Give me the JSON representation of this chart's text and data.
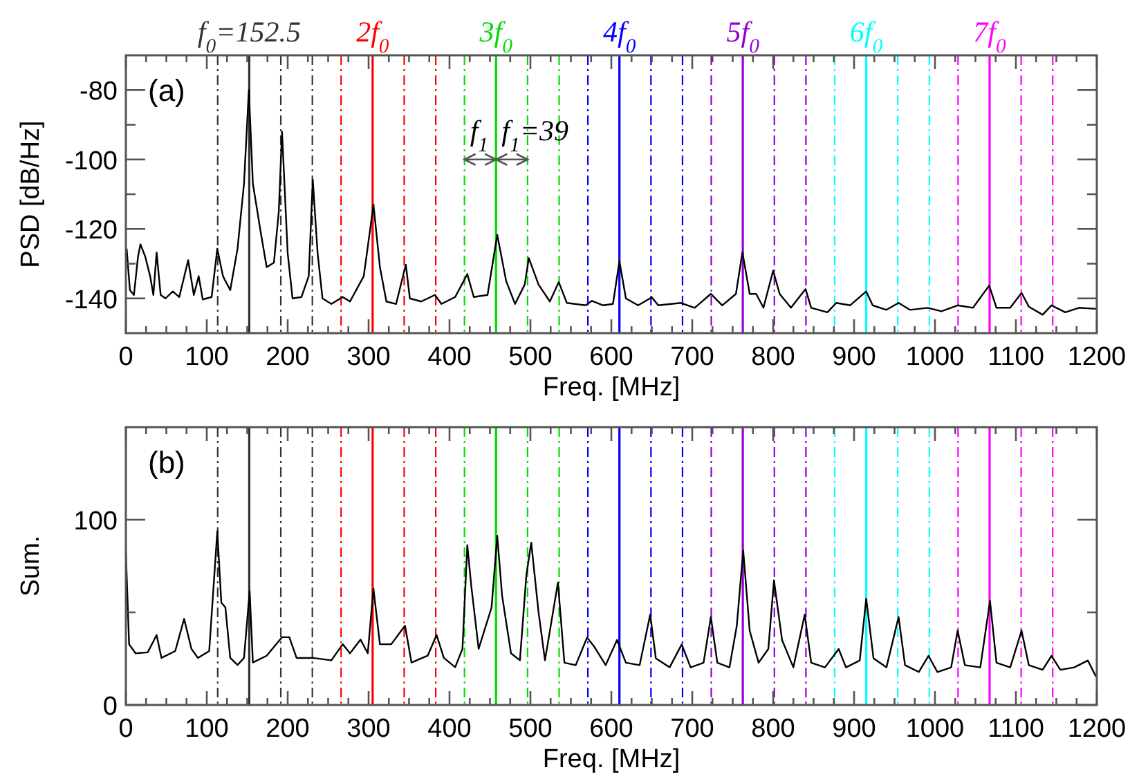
{
  "chart_data": [
    {
      "type": "line",
      "xlabel": "Freq. [MHz]",
      "ylabel": "PSD [dB/Hz]",
      "xlim": [
        0,
        1200
      ],
      "xticks": [
        0,
        {
          "value": 25,
          "label": null
        },
        {
          "value": 50,
          "label": null
        },
        {
          "value": 75,
          "label": null
        },
        100,
        {
          "value": 125,
          "label": null
        },
        {
          "value": 150,
          "label": null
        },
        {
          "value": 175,
          "label": null
        },
        200,
        {
          "value": 225,
          "label": null
        },
        {
          "value": 250,
          "label": null
        },
        {
          "value": 275,
          "label": null
        },
        300,
        {
          "value": 325,
          "label": null
        },
        {
          "value": 350,
          "label": null
        },
        {
          "value": 375,
          "label": null
        },
        400,
        {
          "value": 425,
          "label": null
        },
        {
          "value": 450,
          "label": null
        },
        {
          "value": 475,
          "label": null
        },
        500,
        {
          "value": 525,
          "label": null
        },
        {
          "value": 550,
          "label": null
        },
        {
          "value": 575,
          "label": null
        },
        600,
        {
          "value": 625,
          "label": null
        },
        {
          "value": 650,
          "label": null
        },
        {
          "value": 675,
          "label": null
        },
        700,
        {
          "value": 725,
          "label": null
        },
        {
          "value": 750,
          "label": null
        },
        {
          "value": 775,
          "label": null
        },
        800,
        {
          "value": 825,
          "label": null
        },
        {
          "value": 850,
          "label": null
        },
        {
          "value": 875,
          "label": null
        },
        900,
        {
          "value": 925,
          "label": null
        },
        {
          "value": 950,
          "label": null
        },
        {
          "value": 975,
          "label": null
        },
        1000,
        {
          "value": 1025,
          "label": null
        },
        {
          "value": 1050,
          "label": null
        },
        {
          "value": 1075,
          "label": null
        },
        1100,
        {
          "value": 1125,
          "label": null
        },
        {
          "value": 1150,
          "label": null
        },
        {
          "value": 1175,
          "label": null
        },
        1200
      ],
      "ylim": [
        -150,
        -70
      ],
      "yticks": [
        -140,
        {
          "value": -130,
          "label": null
        },
        -120,
        {
          "value": -110,
          "label": null
        },
        -100,
        {
          "value": -90,
          "label": null
        },
        -80
      ],
      "series": [
        {
          "color": "#000000",
          "x": [
            1,
            5,
            10,
            15,
            18,
            24,
            30,
            34,
            38,
            43,
            49,
            58,
            66,
            77,
            84,
            90,
            95,
            106,
            113,
            120,
            129,
            138,
            146,
            152,
            157,
            166,
            174,
            183,
            189,
            193,
            200,
            206,
            217,
            226,
            231,
            237,
            243,
            254,
            268,
            277,
            294,
            302,
            306,
            314,
            322,
            334,
            346,
            351,
            365,
            382,
            390,
            407,
            422,
            430,
            447,
            459,
            470,
            481,
            493,
            498,
            510,
            524,
            535,
            545,
            568,
            576,
            590,
            602,
            610,
            618,
            633,
            650,
            658,
            686,
            703,
            723,
            737,
            754,
            762,
            771,
            779,
            788,
            800,
            808,
            822,
            840,
            847,
            867,
            878,
            895,
            915,
            923,
            940,
            955,
            969,
            991,
            1008,
            1028,
            1047,
            1067,
            1076,
            1093,
            1107,
            1116,
            1133,
            1144,
            1161,
            1178,
            1199
          ],
          "values": [
            -125.7,
            -137.6,
            -139,
            -128,
            -124.4,
            -128,
            -133.6,
            -139,
            -126.8,
            -139,
            -140,
            -138,
            -139.6,
            -129,
            -139,
            -133.6,
            -140.3,
            -139.6,
            -125.7,
            -133.6,
            -137.6,
            -125.7,
            -107,
            -80,
            -107,
            -120,
            -131,
            -129.7,
            -115,
            -92,
            -127,
            -140,
            -139.6,
            -133.6,
            -105.8,
            -127,
            -140,
            -141.6,
            -139.6,
            -140.9,
            -133.6,
            -120,
            -113,
            -131,
            -140.9,
            -141.6,
            -130.3,
            -140,
            -140.9,
            -139,
            -141.6,
            -139.6,
            -133,
            -139.6,
            -139,
            -121.7,
            -135,
            -141.6,
            -136,
            -128.4,
            -136,
            -140.9,
            -135.3,
            -141.3,
            -142,
            -140.7,
            -142,
            -141.6,
            -129.3,
            -140,
            -142,
            -139.7,
            -142,
            -141.3,
            -142.7,
            -138.7,
            -142,
            -138.7,
            -126.7,
            -138.7,
            -138.7,
            -142.7,
            -132,
            -138.7,
            -142.7,
            -137.3,
            -142.7,
            -144,
            -141.3,
            -142,
            -138,
            -142,
            -143.3,
            -141.3,
            -143.3,
            -142.7,
            -143.7,
            -142,
            -142.7,
            -136.3,
            -142.7,
            -142.7,
            -138.4,
            -142.4,
            -144.7,
            -142,
            -144,
            -142.7,
            -143
          ]
        }
      ],
      "ref_lines": [
        {
          "axis": "x",
          "value": 152.5,
          "label": "f$_{0}$=152.5",
          "color": "#333333",
          "line_style": "solid"
        },
        {
          "axis": "x",
          "value": 113.5,
          "label": null,
          "color": "#333333",
          "line_style": "dashed"
        },
        {
          "axis": "x",
          "value": 191.5,
          "label": null,
          "color": "#333333",
          "line_style": "dashed"
        },
        {
          "axis": "x",
          "value": 230.5,
          "label": null,
          "color": "#333333",
          "line_style": "dashed"
        },
        {
          "axis": "x",
          "value": 305,
          "label": "2f$_{0}$",
          "color": "#ff0000",
          "line_style": "solid"
        },
        {
          "axis": "x",
          "value": 266,
          "label": null,
          "color": "#ff0000",
          "line_style": "dashed"
        },
        {
          "axis": "x",
          "value": 344,
          "label": null,
          "color": "#ff0000",
          "line_style": "dashed"
        },
        {
          "axis": "x",
          "value": 383,
          "label": null,
          "color": "#ff0000",
          "line_style": "dashed"
        },
        {
          "axis": "x",
          "value": 457.5,
          "label": "3f$_{0}$",
          "color": "#00dd00",
          "line_style": "solid"
        },
        {
          "axis": "x",
          "value": 418.5,
          "label": null,
          "color": "#00dd00",
          "line_style": "dashed"
        },
        {
          "axis": "x",
          "value": 496.5,
          "label": null,
          "color": "#00dd00",
          "line_style": "dashed"
        },
        {
          "axis": "x",
          "value": 535.5,
          "label": null,
          "color": "#00dd00",
          "line_style": "dashed"
        },
        {
          "axis": "x",
          "value": 610,
          "label": "4f$_{0}$",
          "color": "#0000ff",
          "line_style": "solid"
        },
        {
          "axis": "x",
          "value": 571,
          "label": null,
          "color": "#0000ff",
          "line_style": "dashed"
        },
        {
          "axis": "x",
          "value": 649,
          "label": null,
          "color": "#0000ff",
          "line_style": "dashed"
        },
        {
          "axis": "x",
          "value": 688,
          "label": null,
          "color": "#0000ff",
          "line_style": "dashed"
        },
        {
          "axis": "x",
          "value": 762.5,
          "label": "5f$_{0}$",
          "color": "#9400d3",
          "line_style": "solid"
        },
        {
          "axis": "x",
          "value": 723.5,
          "label": null,
          "color": "#9400d3",
          "line_style": "dashed"
        },
        {
          "axis": "x",
          "value": 801.5,
          "label": null,
          "color": "#9400d3",
          "line_style": "dashed"
        },
        {
          "axis": "x",
          "value": 840.5,
          "label": null,
          "color": "#9400d3",
          "line_style": "dashed"
        },
        {
          "axis": "x",
          "value": 915,
          "label": "6f$_{0}$",
          "color": "#00ffff",
          "line_style": "solid"
        },
        {
          "axis": "x",
          "value": 876,
          "label": null,
          "color": "#00ffff",
          "line_style": "dashed"
        },
        {
          "axis": "x",
          "value": 954,
          "label": null,
          "color": "#00ffff",
          "line_style": "dashed"
        },
        {
          "axis": "x",
          "value": 993,
          "label": null,
          "color": "#00ffff",
          "line_style": "dashed"
        },
        {
          "axis": "x",
          "value": 1067.5,
          "label": "7f$_{0}$",
          "color": "#ff00ff",
          "line_style": "solid"
        },
        {
          "axis": "x",
          "value": 1028.5,
          "label": null,
          "color": "#ff00ff",
          "line_style": "dashed"
        },
        {
          "axis": "x",
          "value": 1106.5,
          "label": null,
          "color": "#ff00ff",
          "line_style": "dashed"
        },
        {
          "axis": "x",
          "value": 1145.5,
          "label": null,
          "color": "#ff00ff",
          "line_style": "dashed"
        }
      ],
      "annotations": [
        "(a)",
        "f$_{1}$",
        "f$_{1}$=39"
      ]
    },
    {
      "type": "line",
      "xlabel": "Freq. [MHz]",
      "ylabel": "Sum.",
      "xlim": [
        0,
        1200
      ],
      "xticks": [
        0,
        {
          "value": 25,
          "label": null
        },
        {
          "value": 50,
          "label": null
        },
        {
          "value": 75,
          "label": null
        },
        100,
        {
          "value": 125,
          "label": null
        },
        {
          "value": 150,
          "label": null
        },
        {
          "value": 175,
          "label": null
        },
        200,
        {
          "value": 225,
          "label": null
        },
        {
          "value": 250,
          "label": null
        },
        {
          "value": 275,
          "label": null
        },
        300,
        {
          "value": 325,
          "label": null
        },
        {
          "value": 350,
          "label": null
        },
        {
          "value": 375,
          "label": null
        },
        400,
        {
          "value": 425,
          "label": null
        },
        {
          "value": 450,
          "label": null
        },
        {
          "value": 475,
          "label": null
        },
        500,
        {
          "value": 525,
          "label": null
        },
        {
          "value": 550,
          "label": null
        },
        {
          "value": 575,
          "label": null
        },
        600,
        {
          "value": 625,
          "label": null
        },
        {
          "value": 650,
          "label": null
        },
        {
          "value": 675,
          "label": null
        },
        700,
        {
          "value": 725,
          "label": null
        },
        {
          "value": 750,
          "label": null
        },
        {
          "value": 775,
          "label": null
        },
        800,
        {
          "value": 825,
          "label": null
        },
        {
          "value": 850,
          "label": null
        },
        {
          "value": 875,
          "label": null
        },
        900,
        {
          "value": 925,
          "label": null
        },
        {
          "value": 950,
          "label": null
        },
        {
          "value": 975,
          "label": null
        },
        1000,
        {
          "value": 1025,
          "label": null
        },
        {
          "value": 1050,
          "label": null
        },
        {
          "value": 1075,
          "label": null
        },
        1100,
        {
          "value": 1125,
          "label": null
        },
        {
          "value": 1150,
          "label": null
        },
        {
          "value": 1175,
          "label": null
        },
        1200
      ],
      "ylim": [
        0,
        150
      ],
      "yticks": [
        0,
        {
          "value": 50,
          "label": null
        },
        100
      ],
      "series": [
        {
          "color": "#000000",
          "x": [
            0,
            4,
            12,
            27,
            38,
            44,
            61,
            72,
            81,
            89,
            103,
            113,
            118,
            123,
            129,
            138,
            146,
            153,
            157,
            174,
            193,
            202,
            211,
            231,
            254,
            268,
            277,
            290,
            299,
            306,
            314,
            328,
            345,
            353,
            373,
            384,
            393,
            407,
            416,
            422,
            427,
            436,
            452,
            459,
            465,
            476,
            487,
            495,
            501,
            510,
            518,
            534,
            542,
            556,
            570,
            579,
            593,
            607,
            618,
            635,
            648,
            655,
            672,
            687,
            698,
            714,
            723,
            731,
            746,
            755,
            763,
            771,
            782,
            794,
            801,
            811,
            825,
            839,
            847,
            864,
            881,
            890,
            907,
            915,
            924,
            940,
            955,
            963,
            980,
            992,
            1003,
            1020,
            1028,
            1037,
            1056,
            1068,
            1076,
            1093,
            1107,
            1116,
            1133,
            1144,
            1155,
            1172,
            1189,
            1199
          ],
          "values": [
            82.6,
            32.8,
            27.9,
            28.4,
            37.8,
            25.4,
            29.1,
            46.5,
            30.3,
            25.4,
            29.1,
            93.8,
            55.2,
            52.7,
            25.4,
            21.6,
            25.4,
            61.4,
            22.9,
            26.6,
            36.6,
            36.6,
            25.4,
            25.4,
            24.1,
            32.8,
            27.9,
            35.3,
            27.9,
            62.7,
            32.8,
            32.8,
            42.8,
            22.9,
            26.6,
            37.8,
            25.4,
            20.4,
            30.3,
            86.3,
            63.9,
            30.3,
            52.7,
            91.3,
            59,
            27.9,
            24.1,
            70.1,
            87.6,
            50.2,
            24.1,
            66.1,
            22.8,
            21.5,
            36.4,
            31.4,
            21.5,
            35.1,
            22.8,
            21.5,
            48.8,
            25.2,
            20.3,
            32.7,
            20.3,
            22.8,
            47.5,
            22.8,
            20.3,
            42.6,
            83.4,
            40.1,
            22.8,
            30.2,
            67.3,
            35.1,
            20.3,
            48.8,
            22.8,
            20.3,
            30.2,
            20.3,
            24,
            57.4,
            25.2,
            20.3,
            47.5,
            21.5,
            17.8,
            26.5,
            17.8,
            20.3,
            40.1,
            21.5,
            20.3,
            56.2,
            22.8,
            20.3,
            40.1,
            21.5,
            19,
            26.5,
            19,
            20.3,
            24,
            15.3
          ]
        }
      ],
      "ref_lines": [
        {
          "axis": "x",
          "value": 152.5,
          "color": "#333333",
          "line_style": "solid"
        },
        {
          "axis": "x",
          "value": 113.5,
          "color": "#333333",
          "line_style": "dashed"
        },
        {
          "axis": "x",
          "value": 191.5,
          "color": "#333333",
          "line_style": "dashed"
        },
        {
          "axis": "x",
          "value": 230.5,
          "color": "#333333",
          "line_style": "dashed"
        },
        {
          "axis": "x",
          "value": 305,
          "color": "#ff0000",
          "line_style": "solid"
        },
        {
          "axis": "x",
          "value": 266,
          "color": "#ff0000",
          "line_style": "dashed"
        },
        {
          "axis": "x",
          "value": 344,
          "color": "#ff0000",
          "line_style": "dashed"
        },
        {
          "axis": "x",
          "value": 383,
          "color": "#ff0000",
          "line_style": "dashed"
        },
        {
          "axis": "x",
          "value": 457.5,
          "color": "#00dd00",
          "line_style": "solid"
        },
        {
          "axis": "x",
          "value": 418.5,
          "color": "#00dd00",
          "line_style": "dashed"
        },
        {
          "axis": "x",
          "value": 496.5,
          "color": "#00dd00",
          "line_style": "dashed"
        },
        {
          "axis": "x",
          "value": 535.5,
          "color": "#00dd00",
          "line_style": "dashed"
        },
        {
          "axis": "x",
          "value": 610,
          "color": "#0000ff",
          "line_style": "solid"
        },
        {
          "axis": "x",
          "value": 571,
          "color": "#0000ff",
          "line_style": "dashed"
        },
        {
          "axis": "x",
          "value": 649,
          "color": "#0000ff",
          "line_style": "dashed"
        },
        {
          "axis": "x",
          "value": 688,
          "color": "#0000ff",
          "line_style": "dashed"
        },
        {
          "axis": "x",
          "value": 762.5,
          "color": "#9400d3",
          "line_style": "solid"
        },
        {
          "axis": "x",
          "value": 723.5,
          "color": "#9400d3",
          "line_style": "dashed"
        },
        {
          "axis": "x",
          "value": 801.5,
          "color": "#9400d3",
          "line_style": "dashed"
        },
        {
          "axis": "x",
          "value": 840.5,
          "color": "#9400d3",
          "line_style": "dashed"
        },
        {
          "axis": "x",
          "value": 915,
          "color": "#00ffff",
          "line_style": "solid"
        },
        {
          "axis": "x",
          "value": 876,
          "color": "#00ffff",
          "line_style": "dashed"
        },
        {
          "axis": "x",
          "value": 954,
          "color": "#00ffff",
          "line_style": "dashed"
        },
        {
          "axis": "x",
          "value": 993,
          "color": "#00ffff",
          "line_style": "dashed"
        },
        {
          "axis": "x",
          "value": 1067.5,
          "color": "#ff00ff",
          "line_style": "solid"
        },
        {
          "axis": "x",
          "value": 1028.5,
          "color": "#ff00ff",
          "line_style": "dashed"
        },
        {
          "axis": "x",
          "value": 1106.5,
          "color": "#ff00ff",
          "line_style": "dashed"
        },
        {
          "axis": "x",
          "value": 1145.5,
          "color": "#ff00ff",
          "line_style": "dashed"
        }
      ],
      "annotations": [
        "(b)"
      ]
    }
  ]
}
